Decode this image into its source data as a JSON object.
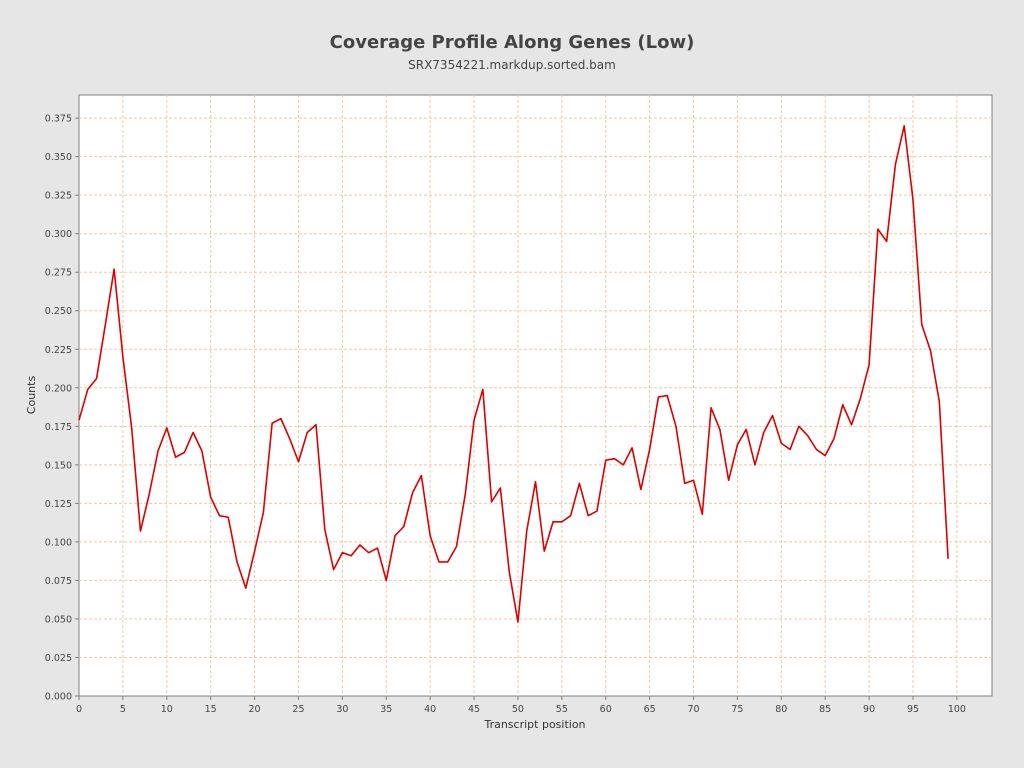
{
  "chart_data": {
    "type": "line",
    "title": "Coverage Profile Along Genes (Low)",
    "subtitle": "SRX7354221.markdup.sorted.bam",
    "xlabel": "Transcript position",
    "ylabel": "Counts",
    "xlim": [
      0,
      104
    ],
    "ylim": [
      0,
      0.39
    ],
    "x_ticks": [
      0,
      5,
      10,
      15,
      20,
      25,
      30,
      35,
      40,
      45,
      50,
      55,
      60,
      65,
      70,
      75,
      80,
      85,
      90,
      95,
      100
    ],
    "y_ticks": [
      "0.000",
      "0.025",
      "0.050",
      "0.075",
      "0.100",
      "0.125",
      "0.150",
      "0.175",
      "0.200",
      "0.225",
      "0.250",
      "0.275",
      "0.300",
      "0.325",
      "0.350",
      "0.375"
    ],
    "grid": true,
    "line_color": "#dd0000",
    "grid_color": "#f0c8a8",
    "series": [
      {
        "x": [
          0,
          1,
          2,
          3,
          4,
          5,
          6,
          7,
          8,
          9,
          10,
          11,
          12,
          13,
          14,
          15,
          16,
          17,
          18,
          19,
          20,
          21,
          22,
          23,
          24,
          25,
          26,
          27,
          28,
          29,
          30,
          31,
          32,
          33,
          34,
          35,
          36,
          37,
          38,
          39,
          40,
          41,
          42,
          43,
          44,
          45,
          46,
          47,
          48,
          49,
          50,
          51,
          52,
          53,
          54,
          55,
          56,
          57,
          58,
          59,
          60,
          61,
          62,
          63,
          64,
          65,
          66,
          67,
          68,
          69,
          70,
          71,
          72,
          73,
          74,
          75,
          76,
          77,
          78,
          79,
          80,
          81,
          82,
          83,
          84,
          85,
          86,
          87,
          88,
          89,
          90,
          91,
          92,
          93,
          94,
          95,
          96,
          97,
          98,
          99
        ],
        "values": [
          0.179,
          0.199,
          0.206,
          0.241,
          0.277,
          0.22,
          0.174,
          0.107,
          0.131,
          0.159,
          0.174,
          0.155,
          0.158,
          0.171,
          0.159,
          0.129,
          0.117,
          0.116,
          0.087,
          0.07,
          0.094,
          0.119,
          0.177,
          0.18,
          0.167,
          0.152,
          0.171,
          0.176,
          0.108,
          0.082,
          0.093,
          0.091,
          0.098,
          0.093,
          0.096,
          0.075,
          0.104,
          0.11,
          0.132,
          0.143,
          0.104,
          0.087,
          0.087,
          0.097,
          0.131,
          0.179,
          0.199,
          0.126,
          0.135,
          0.081,
          0.048,
          0.107,
          0.139,
          0.094,
          0.113,
          0.113,
          0.117,
          0.138,
          0.117,
          0.12,
          0.153,
          0.154,
          0.15,
          0.161,
          0.134,
          0.16,
          0.194,
          0.195,
          0.175,
          0.138,
          0.14,
          0.118,
          0.187,
          0.173,
          0.14,
          0.163,
          0.173,
          0.15,
          0.171,
          0.182,
          0.164,
          0.16,
          0.175,
          0.169,
          0.16,
          0.156,
          0.167,
          0.189,
          0.176,
          0.193,
          0.215,
          0.303,
          0.295,
          0.345,
          0.37,
          0.322,
          0.241,
          0.224,
          0.191,
          0.089
        ]
      }
    ]
  }
}
